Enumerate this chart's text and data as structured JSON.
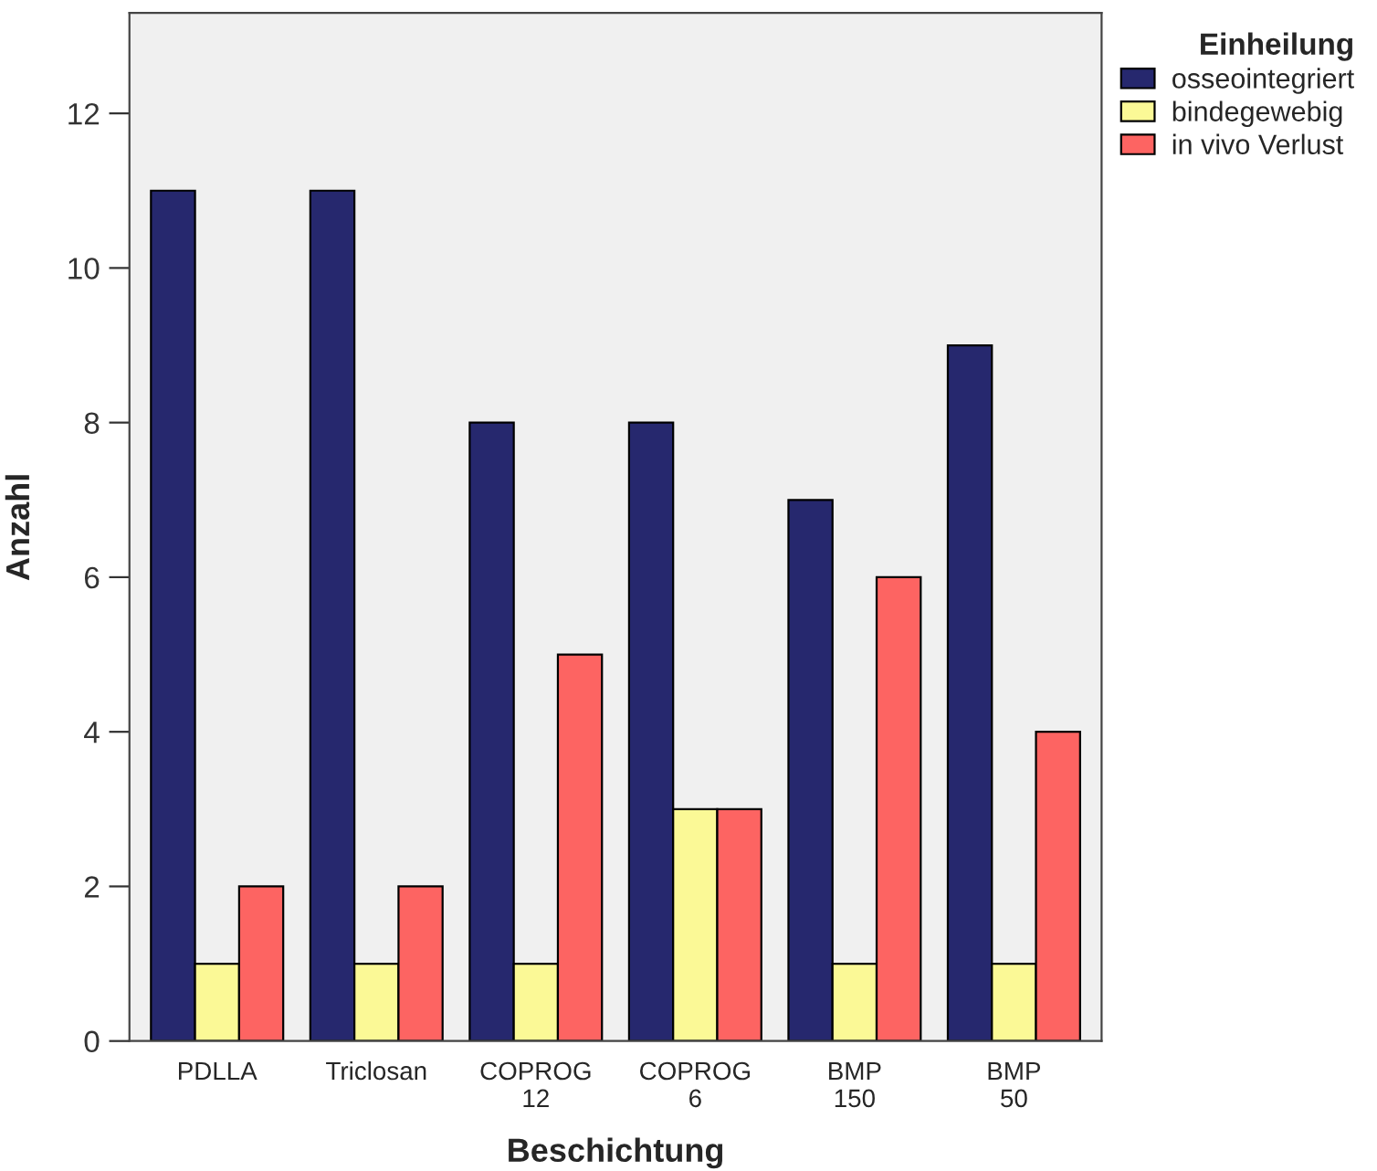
{
  "chart_data": {
    "type": "bar",
    "xlabel": "Beschichtung",
    "ylabel": "Anzahl",
    "legend_title": "Einheilung",
    "categories": [
      "PDLLA",
      "Triclosan",
      "COPROG\n12",
      "COPROG\n6",
      "BMP\n150",
      "BMP\n50"
    ],
    "series": [
      {
        "name": "osseointegriert",
        "color": "#26286e",
        "values": [
          11,
          11,
          8,
          8,
          7,
          9
        ]
      },
      {
        "name": "bindegewebig",
        "color": "#fbf996",
        "values": [
          1,
          1,
          1,
          3,
          1,
          1
        ]
      },
      {
        "name": "in vivo Verlust",
        "color": "#fd6462",
        "values": [
          2,
          2,
          5,
          3,
          6,
          4
        ]
      }
    ],
    "ylim": [
      0,
      13.3
    ],
    "yticks": [
      0,
      2,
      4,
      6,
      8,
      10,
      12
    ],
    "grid": false,
    "legend": "top right"
  }
}
